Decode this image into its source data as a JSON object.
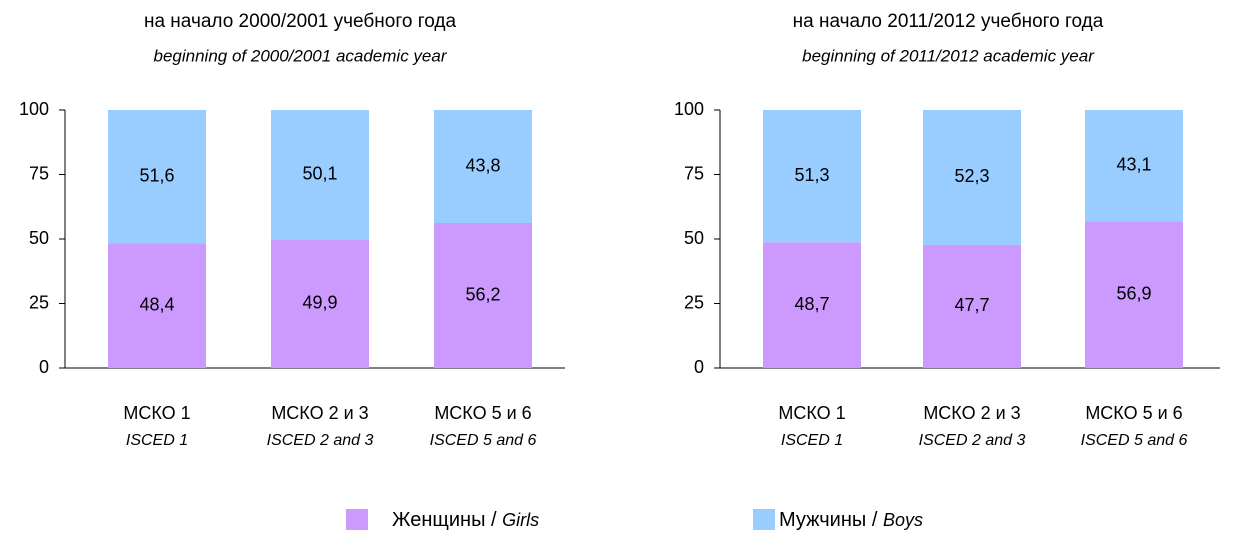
{
  "chart_data": [
    {
      "type": "bar",
      "stacked": true,
      "title": "на начало 2000/2001 учебного года",
      "subtitle": "beginning of 2000/2001 academic year",
      "categories": [
        "МСКО 1",
        "МСКО 2 и 3",
        "МСКО 5 и 6"
      ],
      "category_subtitles": [
        "ISCED 1",
        "ISCED 2 and 3",
        "ISCED 5 and 6"
      ],
      "ylim": [
        0,
        100
      ],
      "yticks": [
        0,
        25,
        50,
        75,
        100
      ],
      "series": [
        {
          "name": "Женщины / Girls",
          "color": "#cc99ff",
          "values": [
            48.4,
            49.9,
            56.2
          ],
          "value_labels": [
            "48,4",
            "49,9",
            "56,2"
          ]
        },
        {
          "name": "Мужчины / Boys",
          "color": "#99ccff",
          "values": [
            51.6,
            50.1,
            43.8
          ],
          "value_labels": [
            "51,6",
            "50,1",
            "43,8"
          ]
        }
      ]
    },
    {
      "type": "bar",
      "stacked": true,
      "title": "на начало 2011/2012 учебного года",
      "subtitle": "beginning of 2011/2012 academic year",
      "categories": [
        "МСКО 1",
        "МСКО 2 и 3",
        "МСКО 5 и 6"
      ],
      "category_subtitles": [
        "ISCED 1",
        "ISCED 2 and 3",
        "ISCED 5 and 6"
      ],
      "ylim": [
        0,
        100
      ],
      "yticks": [
        0,
        25,
        50,
        75,
        100
      ],
      "series": [
        {
          "name": "Женщины / Girls",
          "color": "#cc99ff",
          "values": [
            48.7,
            47.7,
            56.9
          ],
          "value_labels": [
            "48,7",
            "47,7",
            "56,9"
          ]
        },
        {
          "name": "Мужчины / Boys",
          "color": "#99ccff",
          "values": [
            51.3,
            52.3,
            43.1
          ],
          "value_labels": [
            "51,3",
            "52,3",
            "43,1"
          ]
        }
      ]
    }
  ]
}
